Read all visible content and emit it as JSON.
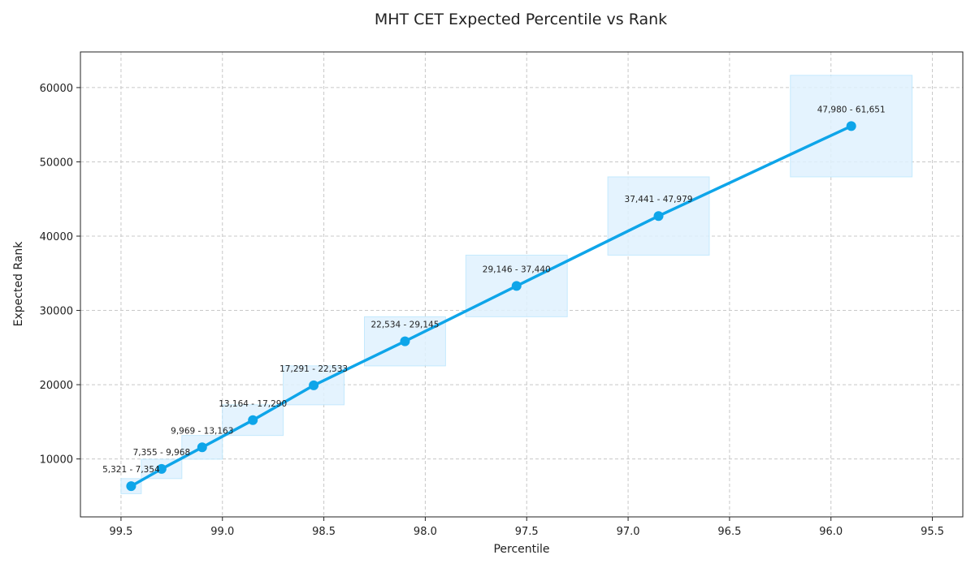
{
  "chart_data": {
    "type": "line",
    "title": "MHT CET Expected Percentile vs Rank",
    "xlabel": "Percentile",
    "ylabel": "Expected Rank",
    "xlim": [
      99.7,
      95.35
    ],
    "ylim": [
      2200,
      64800
    ],
    "x_reversed": true,
    "grid": true,
    "xticks": [
      99.5,
      99.0,
      98.5,
      98.0,
      97.5,
      97.0,
      96.5,
      96.0,
      95.5
    ],
    "xtick_labels": [
      "99.5",
      "99.0",
      "98.5",
      "98.0",
      "97.5",
      "97.0",
      "96.5",
      "96.0",
      "95.5"
    ],
    "yticks": [
      10000,
      20000,
      30000,
      40000,
      50000,
      60000
    ],
    "ytick_labels": [
      "10000",
      "20000",
      "30000",
      "40000",
      "50000",
      "60000"
    ],
    "line_color": "#0ea5e9",
    "band_fill": "#e0f2fe",
    "band_stroke": "#bae6fd",
    "points": [
      {
        "x": 99.45,
        "y": 6337,
        "range_low": 5321,
        "range_high": 7354,
        "pct_low": 99.4,
        "pct_high": 99.5,
        "label": "5,321 - 7,354"
      },
      {
        "x": 99.3,
        "y": 8662,
        "range_low": 7355,
        "range_high": 9968,
        "pct_low": 99.2,
        "pct_high": 99.4,
        "label": "7,355 - 9,968"
      },
      {
        "x": 99.1,
        "y": 11566,
        "range_low": 9969,
        "range_high": 13163,
        "pct_low": 99.0,
        "pct_high": 99.2,
        "label": "9,969 - 13,163"
      },
      {
        "x": 98.85,
        "y": 15227,
        "range_low": 13164,
        "range_high": 17290,
        "pct_low": 98.7,
        "pct_high": 99.0,
        "label": "13,164 - 17,290"
      },
      {
        "x": 98.55,
        "y": 19912,
        "range_low": 17291,
        "range_high": 22533,
        "pct_low": 98.4,
        "pct_high": 98.7,
        "label": "17,291 - 22,533"
      },
      {
        "x": 98.1,
        "y": 25840,
        "range_low": 22534,
        "range_high": 29145,
        "pct_low": 97.9,
        "pct_high": 98.3,
        "label": "22,534 - 29,145"
      },
      {
        "x": 97.55,
        "y": 33293,
        "range_low": 29146,
        "range_high": 37440,
        "pct_low": 97.3,
        "pct_high": 97.8,
        "label": "29,146 - 37,440"
      },
      {
        "x": 96.85,
        "y": 42710,
        "range_low": 37441,
        "range_high": 47979,
        "pct_low": 96.6,
        "pct_high": 97.1,
        "label": "37,441 - 47,979"
      },
      {
        "x": 95.9,
        "y": 54816,
        "range_low": 47980,
        "range_high": 61651,
        "pct_low": 95.6,
        "pct_high": 96.2,
        "label": "47,980 - 61,651"
      }
    ]
  }
}
